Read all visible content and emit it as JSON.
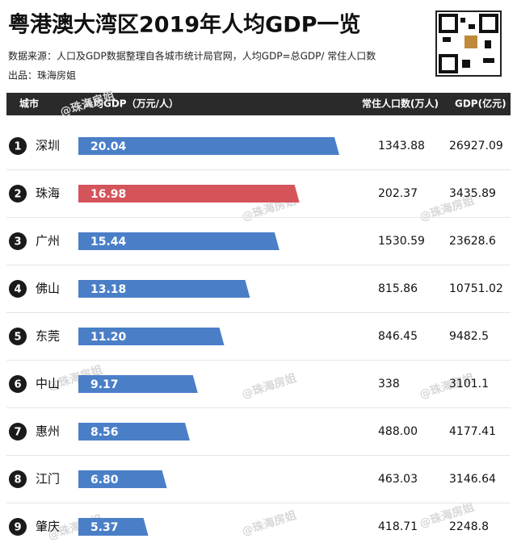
{
  "chart_data": {
    "type": "bar",
    "orientation": "horizontal",
    "title": "粤港澳大湾区2019年人均GDP一览",
    "source": "数据来源：人口及GDP数据整理自各城市统计局官网，人均GDP=总GDP/ 常住人口数",
    "author": "出品：珠海房姐",
    "watermark": "@珠海房姐",
    "headers": [
      "城市",
      "人均GDP（万元/人）",
      "常住人口数(万人)",
      "GDP(亿元)"
    ],
    "ranks": [
      1,
      2,
      3,
      4,
      5,
      6,
      7,
      8,
      9
    ],
    "categories": [
      "深圳",
      "珠海",
      "广州",
      "佛山",
      "东莞",
      "中山",
      "惠州",
      "江门",
      "肇庆"
    ],
    "values": [
      20.04,
      16.98,
      15.44,
      13.18,
      11.2,
      9.17,
      8.56,
      6.8,
      5.37
    ],
    "value_labels": [
      "20.04",
      "16.98",
      "15.44",
      "13.18",
      "11.20",
      "9.17",
      "8.56",
      "6.80",
      "5.37"
    ],
    "population": [
      "1343.88",
      "202.37",
      "1530.59",
      "815.86",
      "846.45",
      "338",
      "488.00",
      "463.03",
      "418.71"
    ],
    "gdp": [
      "26927.09",
      "3435.89",
      "23628.6",
      "10751.02",
      "9482.5",
      "3101.1",
      "4177.41",
      "3146.64",
      "2248.8"
    ],
    "color": "#4a7fc8",
    "highlight_color": "#d4545a",
    "highlight_index": 1
  }
}
